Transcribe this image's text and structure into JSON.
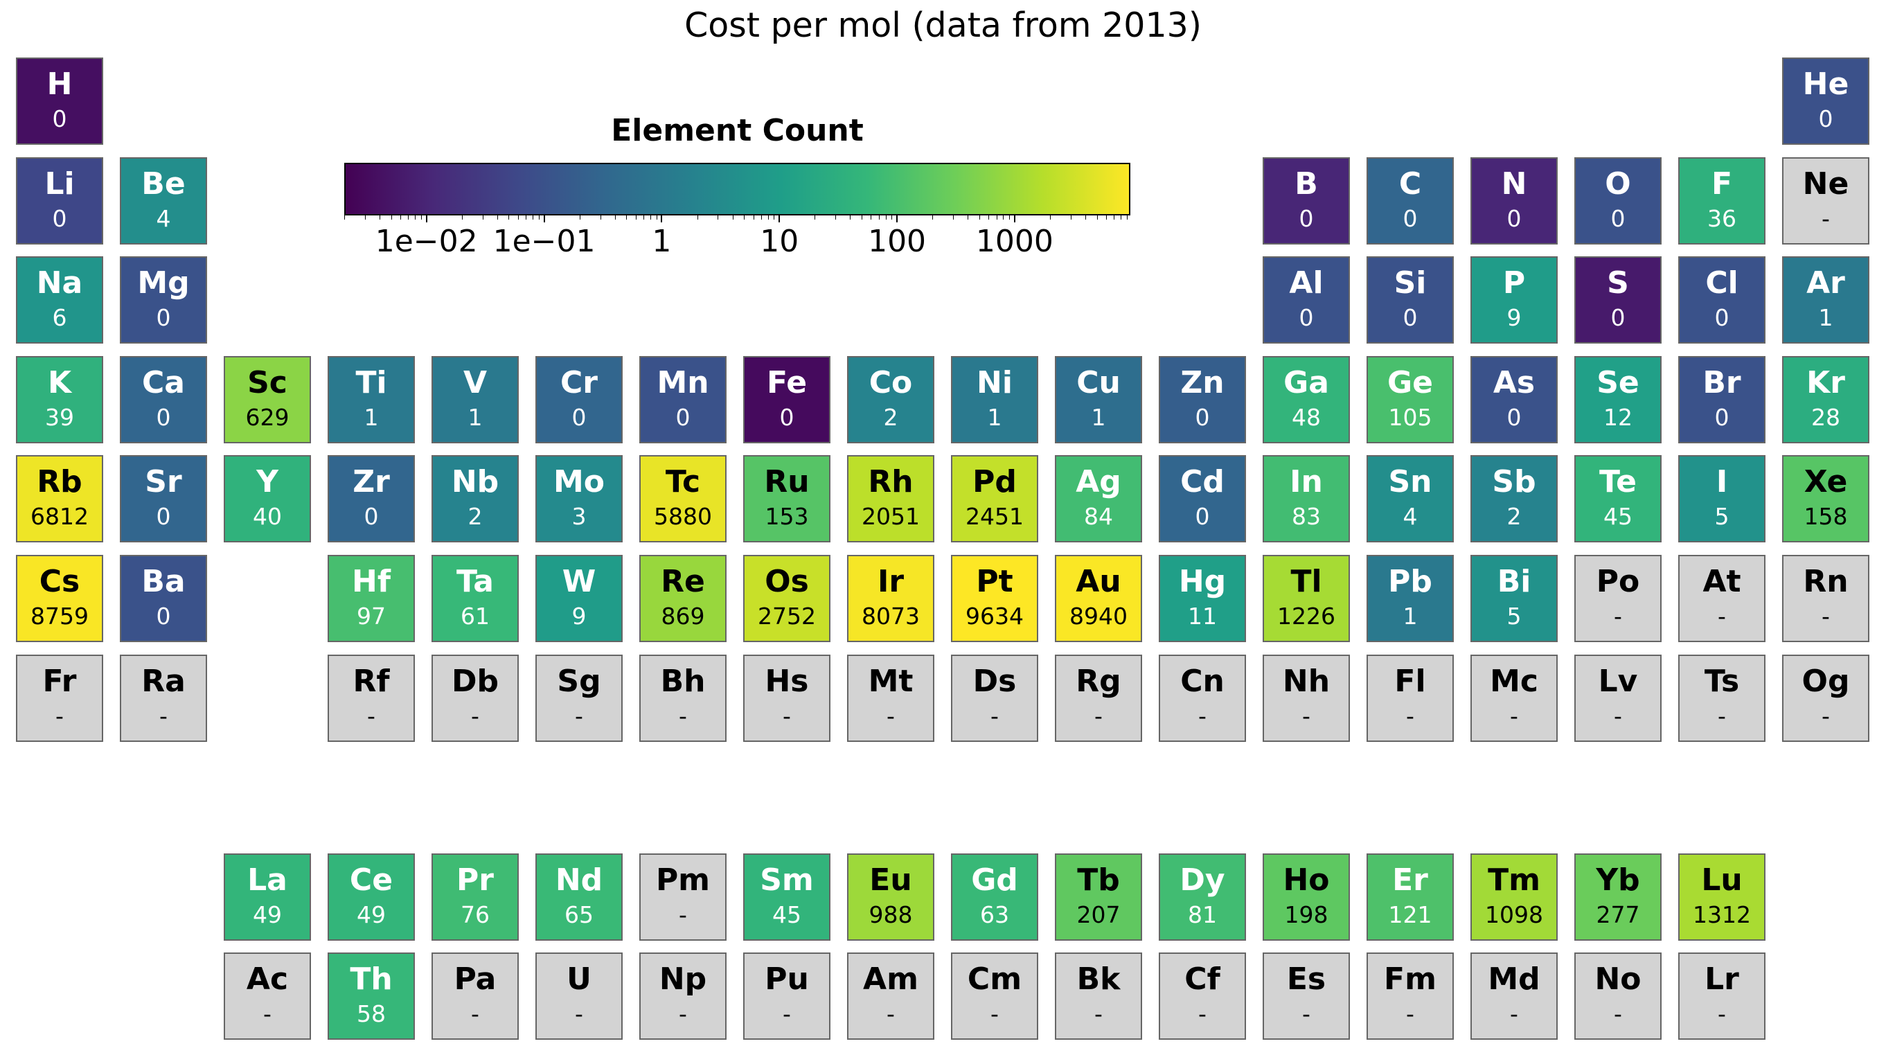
{
  "chart_data": {
    "type": "heatmap",
    "title": "Cost per mol (data from 2013)",
    "colorbar": {
      "label": "Element Count",
      "scale": "log",
      "range": [
        0.002,
        9634
      ],
      "colormap": "viridis",
      "tick_values": [
        0.01,
        0.1,
        1,
        10,
        100,
        1000
      ],
      "tick_labels": [
        "1e−02",
        "1e−01",
        "1",
        "10",
        "100",
        "1000"
      ]
    },
    "missing_color": "#d3d3d3",
    "missing_label": "-",
    "elements": [
      {
        "symbol": "H",
        "row": 1,
        "col": 1,
        "value": 0.00376,
        "label": "0"
      },
      {
        "symbol": "He",
        "row": 1,
        "col": 18,
        "value": 0.0966,
        "label": "0"
      },
      {
        "symbol": "Li",
        "row": 2,
        "col": 1,
        "value": 0.0563,
        "label": "0"
      },
      {
        "symbol": "Be",
        "row": 2,
        "col": 2,
        "value": 4,
        "label": "4"
      },
      {
        "symbol": "B",
        "row": 2,
        "col": 13,
        "value": 0.01,
        "label": "0"
      },
      {
        "symbol": "C",
        "row": 2,
        "col": 14,
        "value": 0.3,
        "label": "0"
      },
      {
        "symbol": "N",
        "row": 2,
        "col": 15,
        "value": 0.01,
        "label": "0"
      },
      {
        "symbol": "O",
        "row": 2,
        "col": 16,
        "value": 0.1,
        "label": "0"
      },
      {
        "symbol": "F",
        "row": 2,
        "col": 17,
        "value": 36,
        "label": "36"
      },
      {
        "symbol": "Ne",
        "row": 2,
        "col": 18,
        "value": null,
        "label": "-"
      },
      {
        "symbol": "Na",
        "row": 3,
        "col": 1,
        "value": 6,
        "label": "6"
      },
      {
        "symbol": "Mg",
        "row": 3,
        "col": 2,
        "value": 0.1,
        "label": "0"
      },
      {
        "symbol": "Al",
        "row": 3,
        "col": 13,
        "value": 0.1,
        "label": "0"
      },
      {
        "symbol": "Si",
        "row": 3,
        "col": 14,
        "value": 0.1,
        "label": "0"
      },
      {
        "symbol": "P",
        "row": 3,
        "col": 15,
        "value": 9,
        "label": "9"
      },
      {
        "symbol": "S",
        "row": 3,
        "col": 16,
        "value": 0.006,
        "label": "0"
      },
      {
        "symbol": "Cl",
        "row": 3,
        "col": 17,
        "value": 0.1,
        "label": "0"
      },
      {
        "symbol": "Ar",
        "row": 3,
        "col": 18,
        "value": 1,
        "label": "1"
      },
      {
        "symbol": "K",
        "row": 4,
        "col": 1,
        "value": 39,
        "label": "39"
      },
      {
        "symbol": "Ca",
        "row": 4,
        "col": 2,
        "value": 0.3,
        "label": "0"
      },
      {
        "symbol": "Sc",
        "row": 4,
        "col": 3,
        "value": 629,
        "label": "629"
      },
      {
        "symbol": "Ti",
        "row": 4,
        "col": 4,
        "value": 1,
        "label": "1"
      },
      {
        "symbol": "V",
        "row": 4,
        "col": 5,
        "value": 1,
        "label": "1"
      },
      {
        "symbol": "Cr",
        "row": 4,
        "col": 6,
        "value": 0.3,
        "label": "0"
      },
      {
        "symbol": "Mn",
        "row": 4,
        "col": 7,
        "value": 0.1,
        "label": "0"
      },
      {
        "symbol": "Fe",
        "row": 4,
        "col": 8,
        "value": 0.003,
        "label": "0"
      },
      {
        "symbol": "Co",
        "row": 4,
        "col": 9,
        "value": 2,
        "label": "2"
      },
      {
        "symbol": "Ni",
        "row": 4,
        "col": 10,
        "value": 1,
        "label": "1"
      },
      {
        "symbol": "Cu",
        "row": 4,
        "col": 11,
        "value": 0.5,
        "label": "1"
      },
      {
        "symbol": "Zn",
        "row": 4,
        "col": 12,
        "value": 0.2,
        "label": "0"
      },
      {
        "symbol": "Ga",
        "row": 4,
        "col": 13,
        "value": 48,
        "label": "48"
      },
      {
        "symbol": "Ge",
        "row": 4,
        "col": 14,
        "value": 105,
        "label": "105"
      },
      {
        "symbol": "As",
        "row": 4,
        "col": 15,
        "value": 0.1,
        "label": "0"
      },
      {
        "symbol": "Se",
        "row": 4,
        "col": 16,
        "value": 12,
        "label": "12"
      },
      {
        "symbol": "Br",
        "row": 4,
        "col": 17,
        "value": 0.1,
        "label": "0"
      },
      {
        "symbol": "Kr",
        "row": 4,
        "col": 18,
        "value": 28,
        "label": "28"
      },
      {
        "symbol": "Rb",
        "row": 5,
        "col": 1,
        "value": 6812,
        "label": "6812"
      },
      {
        "symbol": "Sr",
        "row": 5,
        "col": 2,
        "value": 0.3,
        "label": "0"
      },
      {
        "symbol": "Y",
        "row": 5,
        "col": 3,
        "value": 40,
        "label": "40"
      },
      {
        "symbol": "Zr",
        "row": 5,
        "col": 4,
        "value": 0.3,
        "label": "0"
      },
      {
        "symbol": "Nb",
        "row": 5,
        "col": 5,
        "value": 2,
        "label": "2"
      },
      {
        "symbol": "Mo",
        "row": 5,
        "col": 6,
        "value": 3,
        "label": "3"
      },
      {
        "symbol": "Tc",
        "row": 5,
        "col": 7,
        "value": 5880,
        "label": "5880"
      },
      {
        "symbol": "Ru",
        "row": 5,
        "col": 8,
        "value": 153,
        "label": "153"
      },
      {
        "symbol": "Rh",
        "row": 5,
        "col": 9,
        "value": 2051,
        "label": "2051"
      },
      {
        "symbol": "Pd",
        "row": 5,
        "col": 10,
        "value": 2451,
        "label": "2451"
      },
      {
        "symbol": "Ag",
        "row": 5,
        "col": 11,
        "value": 84,
        "label": "84"
      },
      {
        "symbol": "Cd",
        "row": 5,
        "col": 12,
        "value": 0.3,
        "label": "0"
      },
      {
        "symbol": "In",
        "row": 5,
        "col": 13,
        "value": 83,
        "label": "83"
      },
      {
        "symbol": "Sn",
        "row": 5,
        "col": 14,
        "value": 4,
        "label": "4"
      },
      {
        "symbol": "Sb",
        "row": 5,
        "col": 15,
        "value": 2,
        "label": "2"
      },
      {
        "symbol": "Te",
        "row": 5,
        "col": 16,
        "value": 45,
        "label": "45"
      },
      {
        "symbol": "I",
        "row": 5,
        "col": 17,
        "value": 5,
        "label": "5"
      },
      {
        "symbol": "Xe",
        "row": 5,
        "col": 18,
        "value": 158,
        "label": "158"
      },
      {
        "symbol": "Cs",
        "row": 6,
        "col": 1,
        "value": 8759,
        "label": "8759"
      },
      {
        "symbol": "Ba",
        "row": 6,
        "col": 2,
        "value": 0.1,
        "label": "0"
      },
      {
        "symbol": "Hf",
        "row": 6,
        "col": 4,
        "value": 97,
        "label": "97"
      },
      {
        "symbol": "Ta",
        "row": 6,
        "col": 5,
        "value": 61,
        "label": "61"
      },
      {
        "symbol": "W",
        "row": 6,
        "col": 6,
        "value": 9,
        "label": "9"
      },
      {
        "symbol": "Re",
        "row": 6,
        "col": 7,
        "value": 869,
        "label": "869"
      },
      {
        "symbol": "Os",
        "row": 6,
        "col": 8,
        "value": 2752,
        "label": "2752"
      },
      {
        "symbol": "Ir",
        "row": 6,
        "col": 9,
        "value": 8073,
        "label": "8073"
      },
      {
        "symbol": "Pt",
        "row": 6,
        "col": 10,
        "value": 9634,
        "label": "9634"
      },
      {
        "symbol": "Au",
        "row": 6,
        "col": 11,
        "value": 8940,
        "label": "8940"
      },
      {
        "symbol": "Hg",
        "row": 6,
        "col": 12,
        "value": 11,
        "label": "11"
      },
      {
        "symbol": "Tl",
        "row": 6,
        "col": 13,
        "value": 1226,
        "label": "1226"
      },
      {
        "symbol": "Pb",
        "row": 6,
        "col": 14,
        "value": 1,
        "label": "1"
      },
      {
        "symbol": "Bi",
        "row": 6,
        "col": 15,
        "value": 5,
        "label": "5"
      },
      {
        "symbol": "Po",
        "row": 6,
        "col": 16,
        "value": null,
        "label": "-"
      },
      {
        "symbol": "At",
        "row": 6,
        "col": 17,
        "value": null,
        "label": "-"
      },
      {
        "symbol": "Rn",
        "row": 6,
        "col": 18,
        "value": null,
        "label": "-"
      },
      {
        "symbol": "Fr",
        "row": 7,
        "col": 1,
        "value": null,
        "label": "-"
      },
      {
        "symbol": "Ra",
        "row": 7,
        "col": 2,
        "value": null,
        "label": "-"
      },
      {
        "symbol": "Rf",
        "row": 7,
        "col": 4,
        "value": null,
        "label": "-"
      },
      {
        "symbol": "Db",
        "row": 7,
        "col": 5,
        "value": null,
        "label": "-"
      },
      {
        "symbol": "Sg",
        "row": 7,
        "col": 6,
        "value": null,
        "label": "-"
      },
      {
        "symbol": "Bh",
        "row": 7,
        "col": 7,
        "value": null,
        "label": "-"
      },
      {
        "symbol": "Hs",
        "row": 7,
        "col": 8,
        "value": null,
        "label": "-"
      },
      {
        "symbol": "Mt",
        "row": 7,
        "col": 9,
        "value": null,
        "label": "-"
      },
      {
        "symbol": "Ds",
        "row": 7,
        "col": 10,
        "value": null,
        "label": "-"
      },
      {
        "symbol": "Rg",
        "row": 7,
        "col": 11,
        "value": null,
        "label": "-"
      },
      {
        "symbol": "Cn",
        "row": 7,
        "col": 12,
        "value": null,
        "label": "-"
      },
      {
        "symbol": "Nh",
        "row": 7,
        "col": 13,
        "value": null,
        "label": "-"
      },
      {
        "symbol": "Fl",
        "row": 7,
        "col": 14,
        "value": null,
        "label": "-"
      },
      {
        "symbol": "Mc",
        "row": 7,
        "col": 15,
        "value": null,
        "label": "-"
      },
      {
        "symbol": "Lv",
        "row": 7,
        "col": 16,
        "value": null,
        "label": "-"
      },
      {
        "symbol": "Ts",
        "row": 7,
        "col": 17,
        "value": null,
        "label": "-"
      },
      {
        "symbol": "Og",
        "row": 7,
        "col": 18,
        "value": null,
        "label": "-"
      },
      {
        "symbol": "La",
        "row": 9,
        "col": 3,
        "value": 49,
        "label": "49"
      },
      {
        "symbol": "Ce",
        "row": 9,
        "col": 4,
        "value": 49,
        "label": "49"
      },
      {
        "symbol": "Pr",
        "row": 9,
        "col": 5,
        "value": 76,
        "label": "76"
      },
      {
        "symbol": "Nd",
        "row": 9,
        "col": 6,
        "value": 65,
        "label": "65"
      },
      {
        "symbol": "Pm",
        "row": 9,
        "col": 7,
        "value": null,
        "label": "-"
      },
      {
        "symbol": "Sm",
        "row": 9,
        "col": 8,
        "value": 45,
        "label": "45"
      },
      {
        "symbol": "Eu",
        "row": 9,
        "col": 9,
        "value": 988,
        "label": "988"
      },
      {
        "symbol": "Gd",
        "row": 9,
        "col": 10,
        "value": 63,
        "label": "63"
      },
      {
        "symbol": "Tb",
        "row": 9,
        "col": 11,
        "value": 207,
        "label": "207"
      },
      {
        "symbol": "Dy",
        "row": 9,
        "col": 12,
        "value": 81,
        "label": "81"
      },
      {
        "symbol": "Ho",
        "row": 9,
        "col": 13,
        "value": 198,
        "label": "198"
      },
      {
        "symbol": "Er",
        "row": 9,
        "col": 14,
        "value": 121,
        "label": "121"
      },
      {
        "symbol": "Tm",
        "row": 9,
        "col": 15,
        "value": 1098,
        "label": "1098"
      },
      {
        "symbol": "Yb",
        "row": 9,
        "col": 16,
        "value": 277,
        "label": "277"
      },
      {
        "symbol": "Lu",
        "row": 9,
        "col": 17,
        "value": 1312,
        "label": "1312"
      },
      {
        "symbol": "Ac",
        "row": 10,
        "col": 3,
        "value": null,
        "label": "-"
      },
      {
        "symbol": "Th",
        "row": 10,
        "col": 4,
        "value": 58,
        "label": "58"
      },
      {
        "symbol": "Pa",
        "row": 10,
        "col": 5,
        "value": null,
        "label": "-"
      },
      {
        "symbol": "U",
        "row": 10,
        "col": 6,
        "value": null,
        "label": "-"
      },
      {
        "symbol": "Np",
        "row": 10,
        "col": 7,
        "value": null,
        "label": "-"
      },
      {
        "symbol": "Pu",
        "row": 10,
        "col": 8,
        "value": null,
        "label": "-"
      },
      {
        "symbol": "Am",
        "row": 10,
        "col": 9,
        "value": null,
        "label": "-"
      },
      {
        "symbol": "Cm",
        "row": 10,
        "col": 10,
        "value": null,
        "label": "-"
      },
      {
        "symbol": "Bk",
        "row": 10,
        "col": 11,
        "value": null,
        "label": "-"
      },
      {
        "symbol": "Cf",
        "row": 10,
        "col": 12,
        "value": null,
        "label": "-"
      },
      {
        "symbol": "Es",
        "row": 10,
        "col": 13,
        "value": null,
        "label": "-"
      },
      {
        "symbol": "Fm",
        "row": 10,
        "col": 14,
        "value": null,
        "label": "-"
      },
      {
        "symbol": "Md",
        "row": 10,
        "col": 15,
        "value": null,
        "label": "-"
      },
      {
        "symbol": "No",
        "row": 10,
        "col": 16,
        "value": null,
        "label": "-"
      },
      {
        "symbol": "Lr",
        "row": 10,
        "col": 17,
        "value": null,
        "label": "-"
      }
    ]
  }
}
